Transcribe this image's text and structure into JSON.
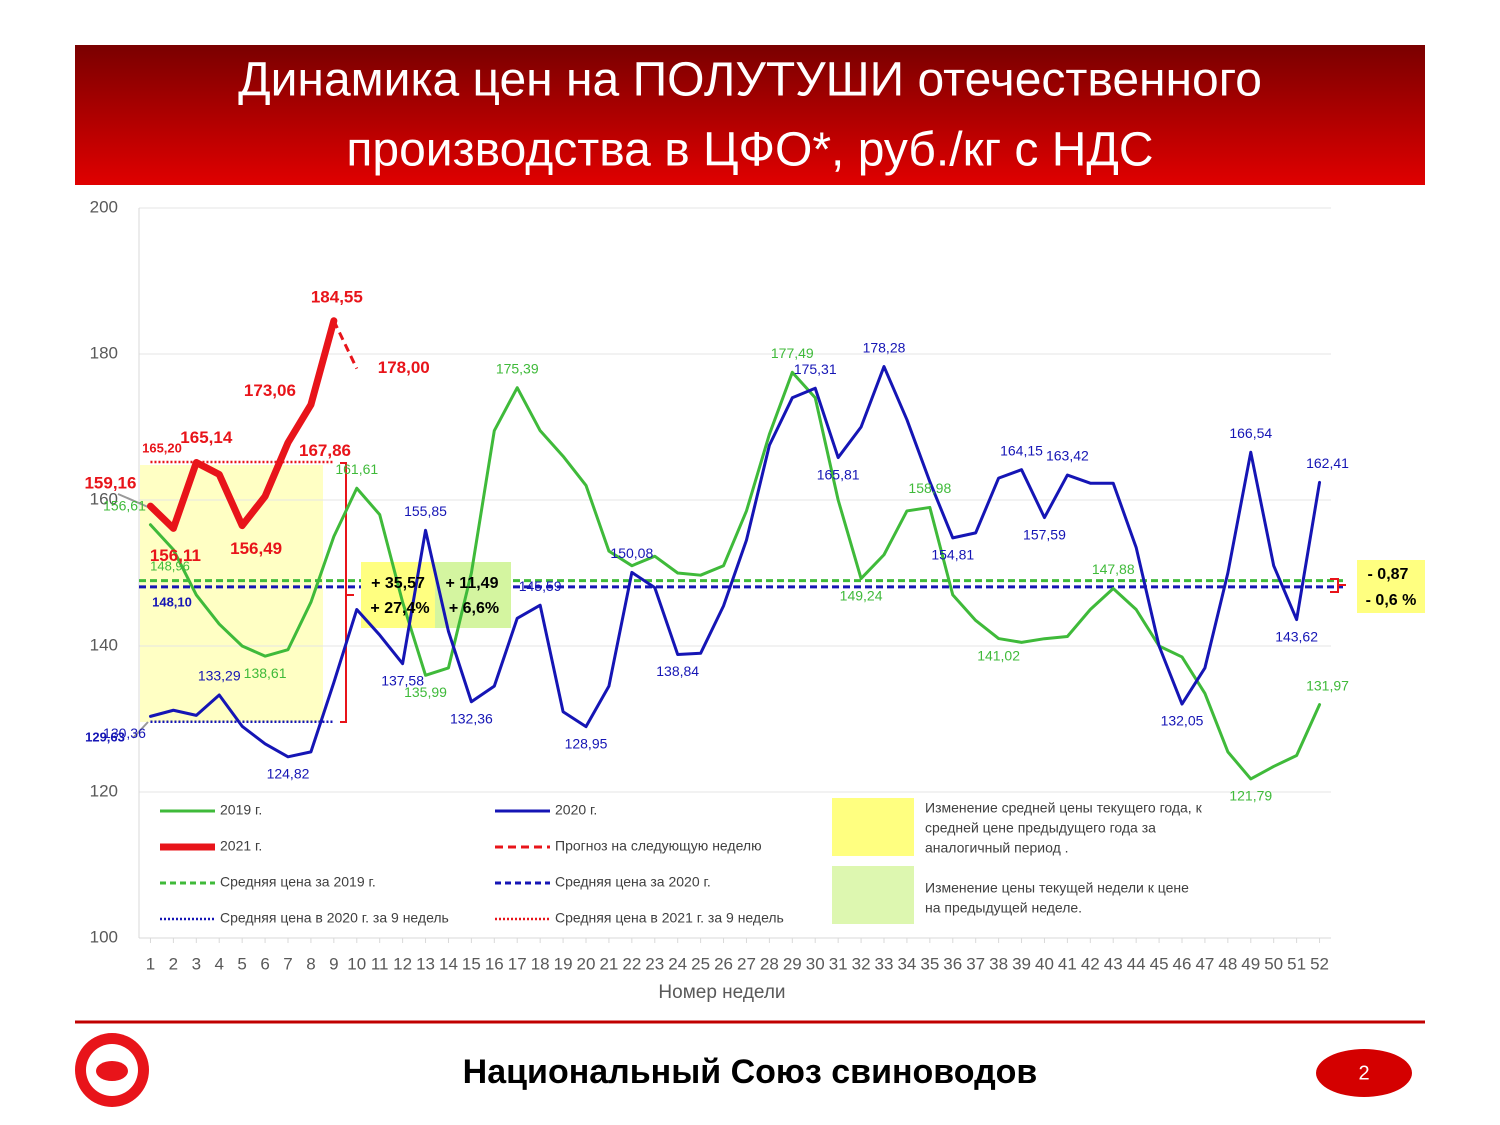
{
  "header": {
    "title_lines": [
      "Динамика цен на ПОЛУТУШИ отечественного",
      "производства в ЦФО*, руб./кг с НДС"
    ]
  },
  "chart_data": {
    "type": "line",
    "x_label": "Номер недели",
    "x": [
      1,
      2,
      3,
      4,
      5,
      6,
      7,
      8,
      9,
      10,
      11,
      12,
      13,
      14,
      15,
      16,
      17,
      18,
      19,
      20,
      21,
      22,
      23,
      24,
      25,
      26,
      27,
      28,
      29,
      30,
      31,
      32,
      33,
      34,
      35,
      36,
      37,
      38,
      39,
      40,
      41,
      42,
      43,
      44,
      45,
      46,
      47,
      48,
      49,
      50,
      51,
      52
    ],
    "xlim": [
      0.5,
      52.5
    ],
    "ylim": [
      100,
      200
    ],
    "yticks": [
      100,
      120,
      140,
      160,
      180,
      200
    ],
    "grid": true,
    "series": [
      {
        "name": "2019 г.",
        "color": "#3fba3a",
        "style": "solid",
        "values": [
          156.61,
          153.2,
          147.0,
          143.0,
          140.0,
          138.61,
          139.5,
          146.0,
          155.0,
          161.61,
          158.0,
          146.0,
          135.99,
          137.0,
          150.0,
          169.5,
          175.39,
          169.5,
          166.0,
          162.0,
          153.0,
          151.0,
          152.3,
          150.0,
          149.7,
          151.0,
          158.5,
          169.0,
          177.49,
          174.0,
          160.0,
          149.24,
          152.5,
          158.5,
          158.98,
          147.0,
          143.5,
          141.02,
          140.5,
          141.0,
          141.3,
          145.0,
          147.88,
          145.0,
          140.0,
          138.5,
          133.5,
          125.5,
          121.79,
          123.5,
          125.0,
          131.97
        ],
        "value_labels": [
          "156,61",
          null,
          null,
          null,
          null,
          "138,61",
          null,
          null,
          null,
          "161,61",
          null,
          null,
          "135,99",
          null,
          null,
          null,
          "175,39",
          null,
          null,
          null,
          null,
          null,
          null,
          null,
          null,
          null,
          null,
          null,
          "177,49",
          null,
          null,
          "149,24",
          null,
          null,
          "158,98",
          null,
          null,
          "141,02",
          null,
          null,
          null,
          null,
          "147,88",
          null,
          null,
          null,
          null,
          null,
          "121,79",
          null,
          null,
          "131,97"
        ]
      },
      {
        "name": "2020 г.",
        "color": "#1515b5",
        "style": "solid",
        "values": [
          130.36,
          131.2,
          130.5,
          133.29,
          129.0,
          126.6,
          124.82,
          125.5,
          135.0,
          145.0,
          141.5,
          137.58,
          155.85,
          142.0,
          132.36,
          134.5,
          143.8,
          145.59,
          131.0,
          128.95,
          134.5,
          150.08,
          148.0,
          138.84,
          139.0,
          145.5,
          154.5,
          167.5,
          174.0,
          175.31,
          165.81,
          170.0,
          178.28,
          171.0,
          162.5,
          154.81,
          155.5,
          163.0,
          164.15,
          157.59,
          163.42,
          162.3,
          162.3,
          153.5,
          140.0,
          132.05,
          137.0,
          150.0,
          166.54,
          151.0,
          143.62,
          162.41
        ],
        "value_labels": [
          "130,36",
          null,
          null,
          "133,29",
          null,
          null,
          "124,82",
          null,
          null,
          null,
          null,
          "137,58",
          "155,85",
          null,
          "132,36",
          null,
          null,
          "145,59",
          null,
          "128,95",
          null,
          "150,08",
          null,
          "138,84",
          null,
          null,
          null,
          null,
          null,
          "175,31",
          "165,81",
          null,
          "178,28",
          null,
          null,
          "154,81",
          null,
          null,
          "164,15",
          "157,59",
          "163,42",
          null,
          null,
          null,
          null,
          "132,05",
          null,
          null,
          "166,54",
          null,
          "143,62",
          "162,41"
        ]
      },
      {
        "name": "2021 г.",
        "color": "#e8141a",
        "style": "bold",
        "values": [
          159.16,
          156.11,
          165.14,
          163.5,
          156.49,
          160.5,
          167.86,
          173.06,
          184.55,
          null,
          null,
          null,
          null,
          null,
          null,
          null,
          null,
          null,
          null,
          null,
          null,
          null,
          null,
          null,
          null,
          null,
          null,
          null,
          null,
          null,
          null,
          null,
          null,
          null,
          null,
          null,
          null,
          null,
          null,
          null,
          null,
          null,
          null,
          null,
          null,
          null,
          null,
          null,
          null,
          null,
          null,
          null
        ],
        "value_labels": [
          "159,16",
          "156,11",
          "165,14",
          null,
          "156,49",
          null,
          "167,86",
          "173,06",
          "184,55",
          null,
          null,
          null,
          null,
          null,
          null,
          null,
          null,
          null,
          null,
          null,
          null,
          null,
          null,
          null,
          null,
          null,
          null,
          null,
          null,
          null,
          null,
          null,
          null,
          null,
          null,
          null,
          null,
          null,
          null,
          null,
          null,
          null,
          null,
          null,
          null,
          null,
          null,
          null,
          null,
          null,
          null,
          null
        ]
      },
      {
        "name": "Прогноз на следующую неделю",
        "color": "#e8141a",
        "style": "dashed",
        "values": [
          null,
          null,
          null,
          null,
          null,
          null,
          null,
          null,
          184.55,
          178.0,
          null,
          null,
          null,
          null,
          null,
          null,
          null,
          null,
          null,
          null,
          null,
          null,
          null,
          null,
          null,
          null,
          null,
          null,
          null,
          null,
          null,
          null,
          null,
          null,
          null,
          null,
          null,
          null,
          null,
          null,
          null,
          null,
          null,
          null,
          null,
          null,
          null,
          null,
          null,
          null,
          null,
          null
        ],
        "value_labels": [
          null,
          null,
          null,
          null,
          null,
          null,
          null,
          null,
          null,
          "178,00",
          null,
          null,
          null,
          null,
          null,
          null,
          null,
          null,
          null,
          null,
          null,
          null,
          null,
          null,
          null,
          null,
          null,
          null,
          null,
          null,
          null,
          null,
          null,
          null,
          null,
          null,
          null,
          null,
          null,
          null,
          null,
          null,
          null,
          null,
          null,
          null,
          null,
          null,
          null,
          null,
          null,
          null
        ]
      }
    ],
    "reference_lines": [
      {
        "name": "Средняя цена за 2019 г.",
        "value": 148.96,
        "label": "148,96",
        "color": "#3fba3a",
        "style": "dashed"
      },
      {
        "name": "Средняя цена за 2020 г.",
        "value": 148.1,
        "label": "148,10",
        "color": "#1515b5",
        "style": "dashed"
      },
      {
        "name": "Средняя цена в 2020 г. за 9 недель",
        "value": 129.63,
        "label": "129,63",
        "color": "#1515b5",
        "style": "dotted",
        "weeks": [
          1,
          9
        ]
      },
      {
        "name": "Средняя цена в 2021 г. за 9 недель",
        "value": 165.2,
        "label": "165,20",
        "color": "#e8141a",
        "style": "dotted",
        "weeks": [
          1,
          9
        ]
      }
    ],
    "annotations": [
      "+ 35,57",
      "+ 11,49",
      "+ 27,4%",
      "+ 6,6%",
      "- 0,87",
      "- 0,6 %"
    ],
    "notes": [
      [
        "Изменение средней цены текущего года, к",
        "средней цене предыдущего года за",
        "аналогичный период ."
      ],
      [
        "Изменение цены текущей недели к цене",
        "на предыдущей неделе."
      ]
    ]
  },
  "footer": {
    "organization": "Национальный Союз свиноводов",
    "page": "2"
  }
}
